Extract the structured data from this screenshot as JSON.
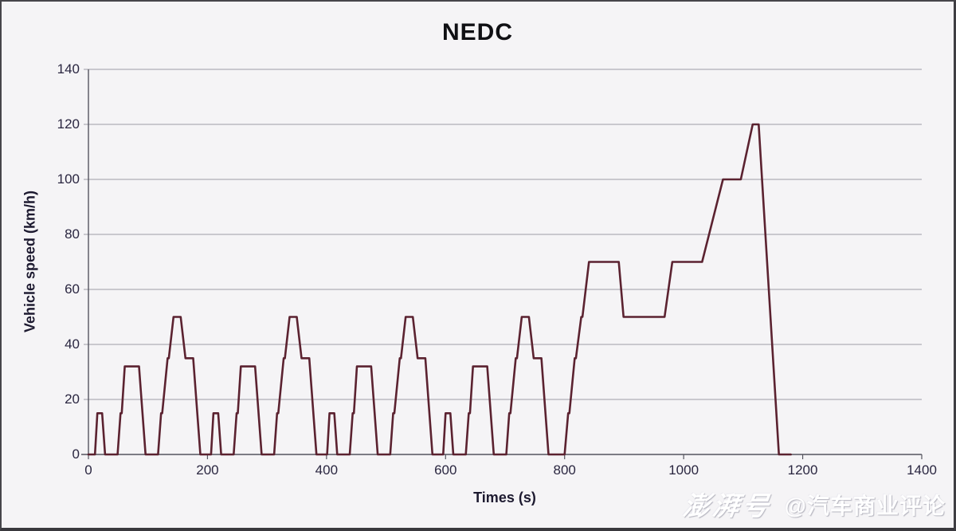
{
  "chart_data": {
    "type": "line",
    "title": "NEDC",
    "xlabel": "Times (s)",
    "ylabel": "Vehicle speed (km/h)",
    "xlim": [
      0,
      1400
    ],
    "ylim": [
      0,
      140
    ],
    "x_ticks": [
      0,
      200,
      400,
      600,
      800,
      1000,
      1200,
      1400
    ],
    "y_ticks": [
      0,
      20,
      40,
      60,
      80,
      100,
      120,
      140
    ],
    "grid": true,
    "legend": false,
    "colors": {
      "line": "#5b2230",
      "grid": "#9d9da5",
      "axis": "#55555f",
      "background": "#f5f4f6"
    },
    "series": [
      {
        "name": "NEDC vehicle speed profile",
        "points": [
          [
            0,
            0
          ],
          [
            11,
            0
          ],
          [
            15,
            15
          ],
          [
            23,
            15
          ],
          [
            28,
            0
          ],
          [
            49,
            0
          ],
          [
            54,
            15
          ],
          [
            56,
            15
          ],
          [
            61,
            32
          ],
          [
            85,
            32
          ],
          [
            96,
            0
          ],
          [
            117,
            0
          ],
          [
            122,
            15
          ],
          [
            124,
            15
          ],
          [
            133,
            35
          ],
          [
            135,
            35
          ],
          [
            143,
            50
          ],
          [
            155,
            50
          ],
          [
            163,
            35
          ],
          [
            176,
            35
          ],
          [
            188,
            0
          ],
          [
            195,
            0
          ],
          [
            206,
            0
          ],
          [
            210,
            15
          ],
          [
            218,
            15
          ],
          [
            223,
            0
          ],
          [
            244,
            0
          ],
          [
            249,
            15
          ],
          [
            251,
            15
          ],
          [
            256,
            32
          ],
          [
            280,
            32
          ],
          [
            291,
            0
          ],
          [
            312,
            0
          ],
          [
            317,
            15
          ],
          [
            319,
            15
          ],
          [
            328,
            35
          ],
          [
            330,
            35
          ],
          [
            338,
            50
          ],
          [
            350,
            50
          ],
          [
            358,
            35
          ],
          [
            371,
            35
          ],
          [
            383,
            0
          ],
          [
            390,
            0
          ],
          [
            401,
            0
          ],
          [
            405,
            15
          ],
          [
            413,
            15
          ],
          [
            418,
            0
          ],
          [
            439,
            0
          ],
          [
            444,
            15
          ],
          [
            446,
            15
          ],
          [
            451,
            32
          ],
          [
            475,
            32
          ],
          [
            486,
            0
          ],
          [
            507,
            0
          ],
          [
            512,
            15
          ],
          [
            514,
            15
          ],
          [
            523,
            35
          ],
          [
            525,
            35
          ],
          [
            533,
            50
          ],
          [
            545,
            50
          ],
          [
            553,
            35
          ],
          [
            566,
            35
          ],
          [
            578,
            0
          ],
          [
            585,
            0
          ],
          [
            596,
            0
          ],
          [
            600,
            15
          ],
          [
            608,
            15
          ],
          [
            613,
            0
          ],
          [
            634,
            0
          ],
          [
            639,
            15
          ],
          [
            641,
            15
          ],
          [
            646,
            32
          ],
          [
            670,
            32
          ],
          [
            681,
            0
          ],
          [
            702,
            0
          ],
          [
            707,
            15
          ],
          [
            709,
            15
          ],
          [
            718,
            35
          ],
          [
            720,
            35
          ],
          [
            728,
            50
          ],
          [
            740,
            50
          ],
          [
            748,
            35
          ],
          [
            761,
            35
          ],
          [
            773,
            0
          ],
          [
            780,
            0
          ],
          [
            800,
            0
          ],
          [
            806,
            15
          ],
          [
            808,
            15
          ],
          [
            817,
            35
          ],
          [
            819,
            35
          ],
          [
            828,
            50
          ],
          [
            830,
            50
          ],
          [
            841,
            70
          ],
          [
            891,
            70
          ],
          [
            899,
            50
          ],
          [
            968,
            50
          ],
          [
            981,
            70
          ],
          [
            1031,
            70
          ],
          [
            1066,
            100
          ],
          [
            1096,
            100
          ],
          [
            1116,
            120
          ],
          [
            1126,
            120
          ],
          [
            1160,
            0
          ],
          [
            1180,
            0
          ]
        ]
      }
    ]
  },
  "watermark": {
    "logo_text": "澎湃号",
    "handle": "@汽车商业评论"
  }
}
